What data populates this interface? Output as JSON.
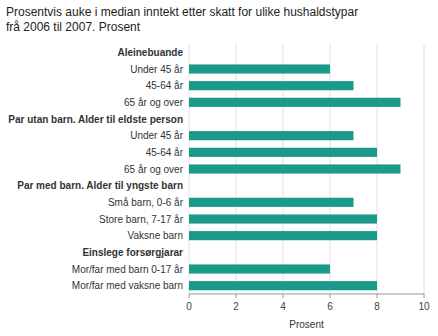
{
  "chart_data": {
    "type": "bar",
    "orientation": "horizontal",
    "title": "Prosentvis auke i median inntekt etter skatt for ulike hushaldstypar",
    "subtitle": "frå 2006 til 2007. Prosent",
    "x_label": "Prosent",
    "categories": [
      "Mor/far med vaksne barn",
      "Mor/far med barn 0-17 år",
      "Einslege forsørgjarar",
      "Vaksne barn",
      "Store barn, 7-17 år",
      "Små barn, 0-6 år",
      "Par med barn. Alder til yngste barn",
      "65 år og over",
      "45-64 år",
      "Under 45 år",
      "Par utan barn. Alder til eldste person",
      "65 år og over ",
      "45-64 år ",
      "Under 45 år ",
      "Aleinebuande"
    ],
    "values": [
      8.0,
      6.0,
      null,
      8.0,
      8.0,
      7.0,
      null,
      9.0,
      8.0,
      7.0,
      null,
      9.0,
      7.0,
      6.0,
      null
    ],
    "color": "#1a9b8a",
    "xlim": [
      0,
      10
    ],
    "xticks": [
      0,
      2,
      4,
      6,
      8,
      10
    ],
    "grid": true
  }
}
